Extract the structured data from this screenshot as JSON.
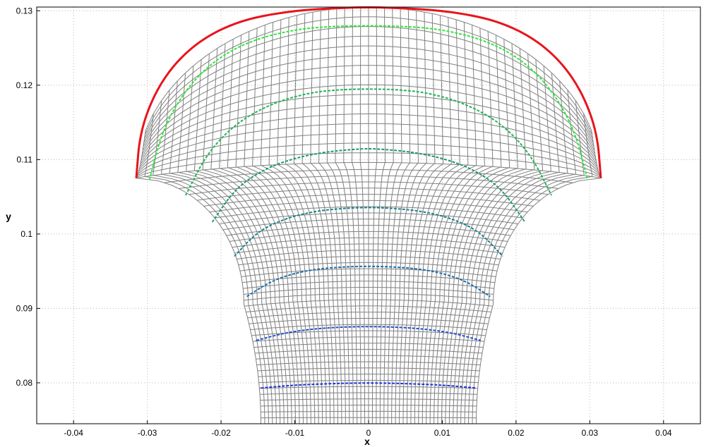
{
  "chart_data": {
    "type": "line",
    "title": "",
    "xlabel": "x",
    "ylabel": "y",
    "xlim": [
      -0.045,
      0.045
    ],
    "ylim": [
      0.0745,
      0.1305
    ],
    "grid": true,
    "grid_style": "dotted",
    "x_ticks": [
      -0.04,
      -0.03,
      -0.02,
      -0.01,
      0,
      0.01,
      0.02,
      0.03,
      0.04
    ],
    "x_tick_labels": [
      "-0.04",
      "-0.03",
      "-0.02",
      "-0.01",
      "0",
      "0.01",
      "0.02",
      "0.03",
      "0.04"
    ],
    "y_ticks": [
      0.08,
      0.09,
      0.1,
      0.11,
      0.12,
      0.13
    ],
    "y_tick_labels": [
      "0.08",
      "0.09",
      "0.1",
      "0.11",
      "0.12",
      "0.13"
    ],
    "mesh": {
      "color": "#808080",
      "description_free": true,
      "shaft_half_width": 0.0146,
      "shaft_bottom_y": 0.0745,
      "neck_y": 0.0905,
      "flare_top_x": 0.0315,
      "flare_top_y": 0.1075,
      "cap_peak_y": 0.1305,
      "n_columns": 56,
      "n_rows": 58
    },
    "series": [
      {
        "color": "#e8141c",
        "style": "solid",
        "width": 3,
        "x": [
          -0.0315,
          -0.031,
          -0.029,
          -0.026,
          -0.022,
          -0.017,
          -0.011,
          -0.006,
          0,
          0.006,
          0.011,
          0.017,
          0.022,
          0.026,
          0.029,
          0.031,
          0.0315
        ],
        "y": [
          0.1075,
          0.1136,
          0.119,
          0.1233,
          0.1266,
          0.1288,
          0.1299,
          0.1303,
          0.1305,
          0.1303,
          0.1299,
          0.1288,
          0.1266,
          0.1233,
          0.119,
          0.1136,
          0.1075
        ]
      },
      {
        "color": "#2ee83a",
        "style": "dashed",
        "width": 2,
        "x": [
          -0.0297,
          -0.028,
          -0.025,
          -0.021,
          -0.016,
          -0.01,
          -0.005,
          0,
          0.005,
          0.01,
          0.016,
          0.021,
          0.025,
          0.028,
          0.0297
        ],
        "y": [
          0.1073,
          0.1138,
          0.1192,
          0.1233,
          0.126,
          0.1275,
          0.1279,
          0.128,
          0.1279,
          0.1275,
          0.126,
          0.1233,
          0.1192,
          0.1138,
          0.1073
        ]
      },
      {
        "color": "#23b45a",
        "style": "dashed",
        "width": 2,
        "x": [
          -0.0248,
          -0.022,
          -0.018,
          -0.013,
          -0.008,
          -0.004,
          0,
          0.004,
          0.008,
          0.013,
          0.018,
          0.022,
          0.0248
        ],
        "y": [
          0.1052,
          0.1107,
          0.1149,
          0.1176,
          0.119,
          0.1194,
          0.1195,
          0.1194,
          0.119,
          0.1176,
          0.1149,
          0.1107,
          0.1052
        ]
      },
      {
        "color": "#1e9678",
        "style": "dashed",
        "width": 2,
        "x": [
          -0.0212,
          -0.018,
          -0.014,
          -0.01,
          -0.006,
          -0.003,
          0,
          0.003,
          0.006,
          0.01,
          0.014,
          0.018,
          0.0212
        ],
        "y": [
          0.1016,
          0.1062,
          0.1088,
          0.1102,
          0.111,
          0.1113,
          0.1115,
          0.1113,
          0.111,
          0.1102,
          0.1088,
          0.1062,
          0.1016
        ]
      },
      {
        "color": "#1e828c",
        "style": "dashed",
        "width": 2,
        "x": [
          -0.0182,
          -0.015,
          -0.011,
          -0.007,
          -0.004,
          0,
          0.004,
          0.007,
          0.011,
          0.015,
          0.0182
        ],
        "y": [
          0.097,
          0.1004,
          0.1022,
          0.1031,
          0.1034,
          0.1036,
          0.1034,
          0.1031,
          0.1022,
          0.1004,
          0.097
        ]
      },
      {
        "color": "#1e6eaa",
        "style": "dashed",
        "width": 2,
        "x": [
          -0.0165,
          -0.013,
          -0.009,
          -0.005,
          0,
          0.005,
          0.009,
          0.013,
          0.0165
        ],
        "y": [
          0.0916,
          0.0938,
          0.095,
          0.0955,
          0.0957,
          0.0955,
          0.095,
          0.0938,
          0.0916
        ]
      },
      {
        "color": "#1e50c8",
        "style": "dashed",
        "width": 2,
        "x": [
          -0.0152,
          -0.011,
          -0.006,
          0,
          0.006,
          0.011,
          0.0152
        ],
        "y": [
          0.0857,
          0.0868,
          0.0874,
          0.0876,
          0.0874,
          0.0868,
          0.0857
        ]
      },
      {
        "color": "#1e32dc",
        "style": "dashed",
        "width": 2,
        "x": [
          -0.0146,
          -0.01,
          -0.005,
          0,
          0.005,
          0.01,
          0.0146
        ],
        "y": [
          0.0793,
          0.0797,
          0.0799,
          0.08,
          0.0799,
          0.0797,
          0.0793
        ]
      }
    ]
  }
}
